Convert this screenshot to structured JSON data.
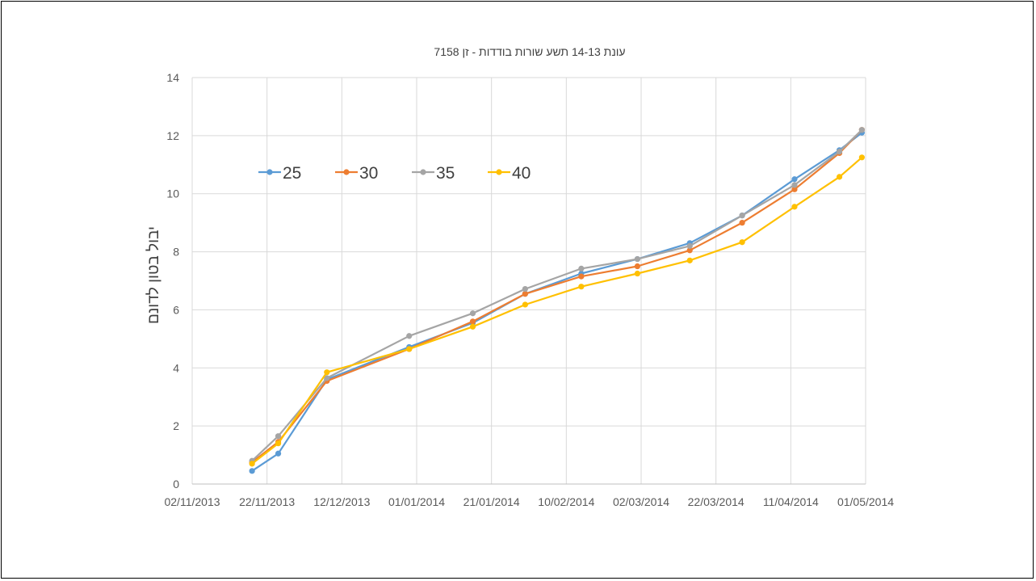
{
  "chart_data": {
    "type": "line",
    "title": "עונת 14-13 תשע שורות בודדות - זן 7158",
    "xlabel": "",
    "ylabel": "יבול בטון לדונם",
    "x_type": "date",
    "xlim": [
      "2013-11-02",
      "2014-05-01"
    ],
    "x_tick_labels": [
      "02/11/2013",
      "22/11/2013",
      "12/12/2013",
      "01/01/2014",
      "21/01/2014",
      "10/02/2014",
      "02/03/2014",
      "22/03/2014",
      "11/04/2014",
      "01/05/2014"
    ],
    "ylim": [
      0,
      14
    ],
    "y_ticks": [
      0,
      2,
      4,
      6,
      8,
      10,
      12,
      14
    ],
    "grid": true,
    "legend_position": "top-left",
    "x": [
      "2013-11-18",
      "2013-11-25",
      "2013-12-08",
      "2013-12-30",
      "2014-01-16",
      "2014-01-30",
      "2014-02-14",
      "2014-03-01",
      "2014-03-15",
      "2014-03-29",
      "2014-04-12",
      "2014-04-24",
      "2014-04-30"
    ],
    "series": [
      {
        "name": "25",
        "color": "#5B9BD5",
        "values": [
          0.45,
          1.05,
          3.6,
          4.72,
          5.55,
          6.55,
          7.25,
          7.75,
          8.3,
          9.25,
          10.5,
          11.5,
          12.1
        ]
      },
      {
        "name": "30",
        "color": "#ED7D31",
        "values": [
          0.75,
          1.45,
          3.55,
          4.65,
          5.6,
          6.55,
          7.15,
          7.5,
          8.05,
          9.0,
          10.15,
          11.4,
          12.2
        ]
      },
      {
        "name": "35",
        "color": "#A5A5A5",
        "values": [
          0.8,
          1.65,
          3.65,
          5.1,
          5.88,
          6.72,
          7.42,
          7.75,
          8.2,
          9.25,
          10.3,
          11.45,
          12.2
        ]
      },
      {
        "name": "40",
        "color": "#FFC000",
        "values": [
          0.7,
          1.4,
          3.85,
          4.65,
          5.42,
          6.18,
          6.8,
          7.25,
          7.7,
          8.33,
          9.55,
          10.58,
          11.25
        ]
      }
    ]
  }
}
